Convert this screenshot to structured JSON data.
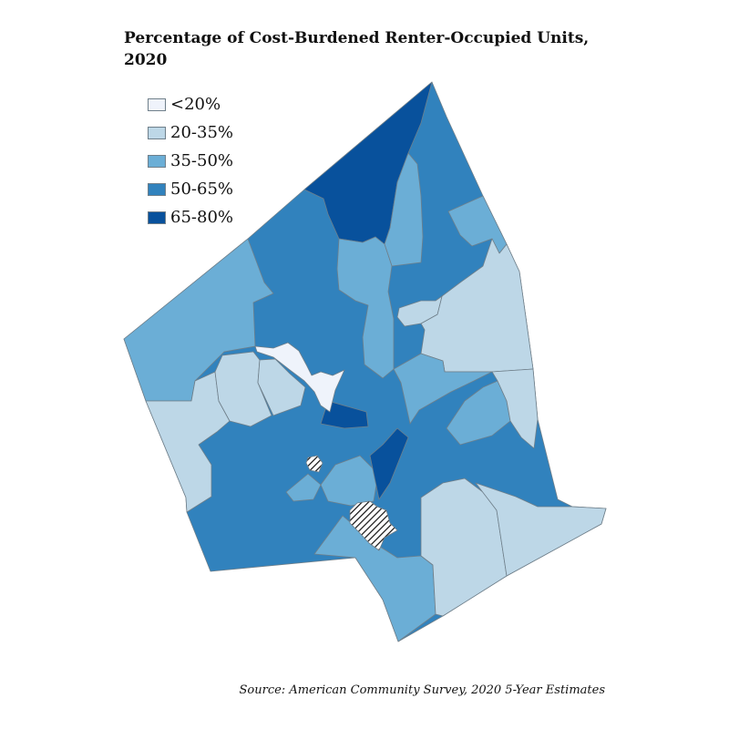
{
  "title": "Percentage of Cost-Burdened Renter-Occupied Units, 2020",
  "source": "Source: American Community Survey, 2020 5-Year Estimates",
  "legend": [
    {
      "label": "<20%",
      "color": "#eff3fb"
    },
    {
      "label": "20-35%",
      "color": "#bdd7e7"
    },
    {
      "label": "35-50%",
      "color": "#6baed6"
    },
    {
      "label": "50-65%",
      "color": "#3182bd"
    },
    {
      "label": "65-80%",
      "color": "#08519c"
    }
  ],
  "no_data_pattern": "diagonal-hatch",
  "boundary_color": "#6f7f8a"
}
